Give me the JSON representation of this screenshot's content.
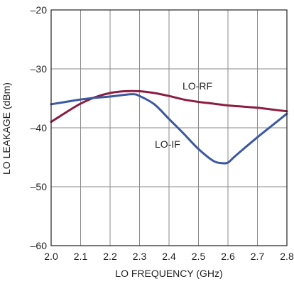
{
  "chart_data": {
    "type": "line",
    "xlabel": "LO FREQUENCY (GHz)",
    "ylabel": "LO LEAKAGE (dBm)",
    "xlim": [
      2.0,
      2.8
    ],
    "ylim": [
      -60,
      -20
    ],
    "x_ticks": [
      2.0,
      2.1,
      2.2,
      2.3,
      2.4,
      2.5,
      2.6,
      2.7,
      2.8
    ],
    "x_tick_labels": [
      "2.0",
      "2.1",
      "2.2",
      "2.3",
      "2.4",
      "2.5",
      "2.6",
      "2.7",
      "2.8"
    ],
    "y_ticks": [
      -20,
      -30,
      -40,
      -50,
      -60
    ],
    "y_tick_labels": [
      "–20",
      "–30",
      "–40",
      "–50",
      "–60"
    ],
    "grid": true,
    "series": [
      {
        "name": "LO-RF",
        "color": "#8c1d40",
        "x": [
          2.0,
          2.05,
          2.1,
          2.15,
          2.2,
          2.25,
          2.3,
          2.35,
          2.4,
          2.45,
          2.5,
          2.55,
          2.6,
          2.65,
          2.7,
          2.75,
          2.8
        ],
        "y": [
          -39.0,
          -37.4,
          -35.9,
          -34.8,
          -34.1,
          -33.8,
          -33.8,
          -34.1,
          -34.6,
          -35.2,
          -35.6,
          -35.9,
          -36.2,
          -36.4,
          -36.6,
          -36.9,
          -37.2
        ]
      },
      {
        "name": "LO-IF",
        "color": "#3b58a3",
        "x": [
          2.0,
          2.05,
          2.1,
          2.15,
          2.2,
          2.25,
          2.28,
          2.3,
          2.35,
          2.4,
          2.45,
          2.5,
          2.55,
          2.58,
          2.6,
          2.62,
          2.65,
          2.7,
          2.75,
          2.8
        ],
        "y": [
          -36.0,
          -35.6,
          -35.2,
          -34.9,
          -34.7,
          -34.4,
          -34.3,
          -34.6,
          -36.0,
          -38.5,
          -41.0,
          -43.6,
          -45.6,
          -46.0,
          -45.9,
          -45.0,
          -43.7,
          -41.6,
          -39.6,
          -37.6
        ]
      }
    ]
  }
}
